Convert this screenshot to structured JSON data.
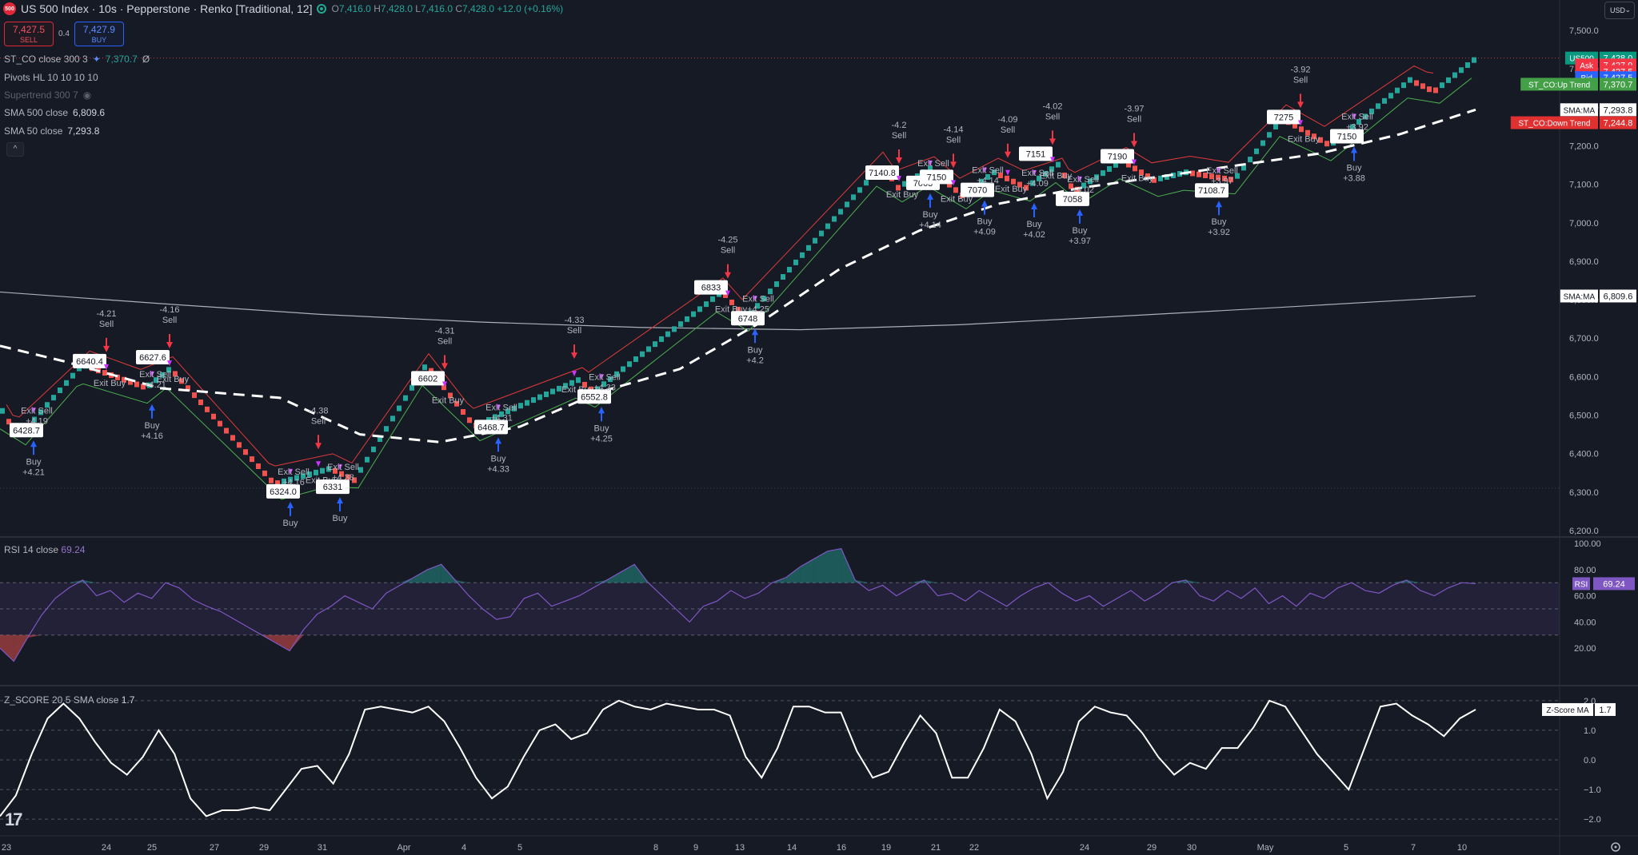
{
  "header": {
    "logo_text": "500",
    "symbol": "US 500 Index · 10s · Pepperstone · Renko [Traditional, 12]",
    "ohlc": {
      "o_label": "O",
      "o": "7,416.0",
      "h_label": "H",
      "h": "7,428.0",
      "l_label": "L",
      "l": "7,416.0",
      "c_label": "C",
      "c": "7,428.0",
      "change": "+12.0 (+0.16%)"
    }
  },
  "trade": {
    "sell_price": "7,427.5",
    "sell_label": "SELL",
    "spread": "0.4",
    "buy_price": "7,427.9",
    "buy_label": "BUY"
  },
  "indicators": [
    {
      "name": "ST_CO close 300 3",
      "value": "7,370.7",
      "extra": "Ø"
    },
    {
      "name": "Pivots HL 10 10 10 10",
      "value": ""
    },
    {
      "name": "Supertrend 300 7",
      "value": ""
    },
    {
      "name": "SMA 500 close",
      "value": "6,809.6"
    },
    {
      "name": "SMA 50 close",
      "value": "7,293.8"
    }
  ],
  "collapse_icon": "chevron-up-icon",
  "currency": {
    "label": "USD",
    "icon": "chevron-down-icon"
  },
  "price_axis": {
    "min": 6200,
    "max": 7500,
    "ticks": [
      "7,500.0",
      "7,400.0",
      "7,300.0",
      "7,200.0",
      "7,100.0",
      "7,000.0",
      "6,900.0",
      "6,800.0",
      "6,700.0",
      "6,600.0",
      "6,500.0",
      "6,400.0",
      "6,300.0",
      "6,200.0"
    ],
    "tick_values": [
      7500,
      7400,
      7300,
      7200,
      7100,
      7000,
      6900,
      6800,
      6700,
      6600,
      6500,
      6400,
      6300,
      6200
    ]
  },
  "price_labels": [
    {
      "tag": "US500",
      "value": "7,428.0",
      "color": "#089981",
      "price": 7428
    },
    {
      "tag": "Ask",
      "value": "7,427.9",
      "color": "#f23645",
      "price": 7410
    },
    {
      "tag": "",
      "value": "7,427.5",
      "color": "#f23645",
      "price": 7393
    },
    {
      "tag": "Bid",
      "value": "7,427.5",
      "color": "#2962ff",
      "price": 7377
    },
    {
      "tag": "ST_CO:Up Trend",
      "value": "7,370.7",
      "color": "#43a047",
      "price": 7360
    },
    {
      "tag": "SMA:MA",
      "value": "7,293.8",
      "color": "#ffffff",
      "price": 7293.8
    },
    {
      "tag": "ST_CO:Down Trend",
      "value": "7,244.8",
      "color": "#e03030",
      "price": 7260
    },
    {
      "tag": "SMA:MA",
      "value": "6,809.6",
      "color": "#ffffff",
      "price": 6809.6
    }
  ],
  "chart_data": {
    "type": "renko",
    "brick_size": 12,
    "sma500": [
      [
        0,
        6820
      ],
      [
        200,
        6790
      ],
      [
        400,
        6762
      ],
      [
        600,
        6742
      ],
      [
        800,
        6728
      ],
      [
        1000,
        6722
      ],
      [
        1200,
        6735
      ],
      [
        1400,
        6757
      ],
      [
        1600,
        6780
      ],
      [
        1845,
        6809.6
      ]
    ],
    "sma50": [
      [
        0,
        6680
      ],
      [
        80,
        6640
      ],
      [
        200,
        6570
      ],
      [
        350,
        6545
      ],
      [
        450,
        6450
      ],
      [
        550,
        6430
      ],
      [
        650,
        6470
      ],
      [
        750,
        6560
      ],
      [
        850,
        6620
      ],
      [
        950,
        6740
      ],
      [
        1050,
        6880
      ],
      [
        1150,
        6980
      ],
      [
        1250,
        7050
      ],
      [
        1350,
        7090
      ],
      [
        1450,
        7120
      ],
      [
        1550,
        7150
      ],
      [
        1650,
        7180
      ],
      [
        1750,
        7230
      ],
      [
        1845,
        7293.8
      ]
    ],
    "renko_path": [
      [
        0,
        6510
      ],
      [
        20,
        6440
      ],
      [
        100,
        6630
      ],
      [
        180,
        6570
      ],
      [
        210,
        6620
      ],
      [
        340,
        6320
      ],
      [
        410,
        6360
      ],
      [
        440,
        6330
      ],
      [
        530,
        6630
      ],
      [
        590,
        6470
      ],
      [
        720,
        6590
      ],
      [
        740,
        6560
      ],
      [
        900,
        6820
      ],
      [
        930,
        6750
      ],
      [
        1100,
        7150
      ],
      [
        1120,
        7090
      ],
      [
        1160,
        7140
      ],
      [
        1200,
        7070
      ],
      [
        1240,
        7130
      ],
      [
        1280,
        7090
      ],
      [
        1320,
        7150
      ],
      [
        1340,
        7080
      ],
      [
        1400,
        7160
      ],
      [
        1440,
        7110
      ],
      [
        1480,
        7130
      ],
      [
        1540,
        7110
      ],
      [
        1600,
        7270
      ],
      [
        1660,
        7200
      ],
      [
        1760,
        7370
      ],
      [
        1790,
        7340
      ],
      [
        1845,
        7430
      ]
    ],
    "signals": [
      {
        "x": 42,
        "side": "buy",
        "pnl": "+4.21",
        "tag": "6428.7",
        "exit": "Exit Sell\n+4.19"
      },
      {
        "x": 133,
        "side": "sell",
        "pnl": "-4.21",
        "tag": "6640.4",
        "exit": "Exit Buy"
      },
      {
        "x": 190,
        "side": "buy",
        "pnl": "+4.16",
        "tag": "",
        "exit": "Exit Sell\n+4.21"
      },
      {
        "x": 212,
        "side": "sell",
        "pnl": "-4.16",
        "tag": "6627.6",
        "exit": "Exit Buy"
      },
      {
        "x": 363,
        "side": "buy",
        "pnl": "",
        "tag": "6324.0",
        "exit": "Exit Sell\n+4.16"
      },
      {
        "x": 398,
        "side": "sell",
        "pnl": "-4.38",
        "tag": "",
        "exit": "Exit Buy"
      },
      {
        "x": 425,
        "side": "buy",
        "pnl": "",
        "tag": "6331",
        "exit": "Exit Sell\n+4.38"
      },
      {
        "x": 556,
        "side": "sell",
        "pnl": "-4.31",
        "tag": "6602",
        "exit": "Exit Buy"
      },
      {
        "x": 623,
        "side": "buy",
        "pnl": "+4.33",
        "tag": "6468.7",
        "exit": "Exit Sell\n+4.31"
      },
      {
        "x": 718,
        "side": "sell",
        "pnl": "-4.33",
        "tag": "",
        "exit": "Exit Buy"
      },
      {
        "x": 752,
        "side": "buy",
        "pnl": "+4.25",
        "tag": "6552.8",
        "exit": "Exit Sell\n+4.33"
      },
      {
        "x": 910,
        "side": "sell",
        "pnl": "-4.25",
        "tag": "6833",
        "exit": "Exit Buy"
      },
      {
        "x": 944,
        "side": "buy",
        "pnl": "+4.2",
        "tag": "6748",
        "exit": "Exit Sell\n+4.25"
      },
      {
        "x": 1124,
        "side": "sell",
        "pnl": "-4.2",
        "tag": "7140.8",
        "exit": "Exit Buy"
      },
      {
        "x": 1163,
        "side": "buy",
        "pnl": "+4.14",
        "tag": "7063",
        "exit": "Exit Sell\n+4.2"
      },
      {
        "x": 1192,
        "side": "sell",
        "pnl": "-4.14",
        "tag": "7150",
        "exit": "Exit Buy"
      },
      {
        "x": 1231,
        "side": "buy",
        "pnl": "+4.09",
        "tag": "7070",
        "exit": "Exit Sell\n+4.14"
      },
      {
        "x": 1260,
        "side": "sell",
        "pnl": "-4.09",
        "tag": "",
        "exit": "Exit Buy"
      },
      {
        "x": 1293,
        "side": "buy",
        "pnl": "+4.02",
        "tag": "",
        "exit": "Exit Sell\n+4.09"
      },
      {
        "x": 1316,
        "side": "sell",
        "pnl": "-4.02",
        "tag": "7151",
        "exit": "Exit Buy"
      },
      {
        "x": 1350,
        "side": "buy",
        "pnl": "+3.97",
        "tag": "7058",
        "exit": "Exit Sell\n+4.02"
      },
      {
        "x": 1418,
        "side": "sell",
        "pnl": "-3.97",
        "tag": "7190",
        "exit": "Exit Buy"
      },
      {
        "x": 1524,
        "side": "buy",
        "pnl": "+3.92",
        "tag": "7108.7",
        "exit": "Exit Sell\n+3.97"
      },
      {
        "x": 1626,
        "side": "sell",
        "pnl": "-3.92",
        "tag": "7275",
        "exit": "Exit Buy"
      },
      {
        "x": 1693,
        "side": "buy",
        "pnl": "+3.88",
        "tag": "7150",
        "exit": "Exit Sell\n+3.92"
      }
    ],
    "x_ticks": [
      "23",
      "24",
      "25",
      "27",
      "29",
      "31",
      "Apr",
      "4",
      "5",
      "8",
      "9",
      "13",
      "14",
      "16",
      "19",
      "21",
      "22",
      "24",
      "29",
      "30",
      "May",
      "5",
      "7",
      "10"
    ],
    "x_tick_pos": [
      8,
      133,
      190,
      268,
      330,
      403,
      505,
      580,
      650,
      820,
      870,
      925,
      990,
      1052,
      1108,
      1170,
      1218,
      1356,
      1440,
      1490,
      1582,
      1683,
      1767,
      1828
    ]
  },
  "rsi": {
    "label": "RSI 14 close",
    "value": "69.24",
    "tag": "RSI",
    "levels": [
      70,
      50,
      30
    ],
    "axis_ticks": [
      "100.00",
      "80.00",
      "60.00",
      "40.00",
      "20.00"
    ],
    "axis_values": [
      100,
      80,
      60,
      40,
      20
    ],
    "series": [
      20,
      10,
      28,
      45,
      58,
      66,
      72,
      60,
      64,
      55,
      62,
      58,
      70,
      66,
      57,
      52,
      48,
      42,
      36,
      30,
      24,
      18,
      34,
      46,
      52,
      60,
      55,
      50,
      62,
      68,
      74,
      80,
      84,
      72,
      60,
      50,
      42,
      44,
      58,
      62,
      52,
      56,
      60,
      66,
      72,
      78,
      84,
      70,
      60,
      50,
      40,
      52,
      56,
      64,
      58,
      62,
      70,
      74,
      82,
      88,
      94,
      96,
      72,
      64,
      68,
      60,
      66,
      72,
      60,
      62,
      56,
      64,
      58,
      52,
      60,
      66,
      70,
      62,
      56,
      60,
      52,
      58,
      64,
      56,
      62,
      70,
      72,
      60,
      56,
      64,
      58,
      66,
      54,
      60,
      52,
      62,
      58,
      66,
      70,
      64,
      62,
      68,
      72,
      64,
      60,
      66,
      70,
      69.24
    ]
  },
  "zscore": {
    "label": "Z_SCORE 20 5 SMA close",
    "value": "1.7",
    "tag": "Z-Score MA",
    "axis_ticks": [
      "2.0",
      "1.0",
      "0.0",
      "−1.0",
      "−2.0"
    ],
    "axis_values": [
      2,
      1,
      0,
      -1,
      -2
    ],
    "series": [
      -1.9,
      -1.2,
      0.2,
      1.4,
      1.9,
      1.4,
      0.6,
      -0.1,
      -0.5,
      0.1,
      1.0,
      0.2,
      -1.3,
      -1.9,
      -1.7,
      -1.7,
      -1.6,
      -1.7,
      -1.0,
      -0.3,
      -0.2,
      -0.8,
      0.2,
      1.7,
      1.8,
      1.7,
      1.6,
      1.8,
      1.3,
      0.4,
      -0.6,
      -1.3,
      -0.9,
      0.1,
      1.0,
      1.2,
      0.7,
      0.9,
      1.7,
      2.0,
      1.8,
      1.7,
      1.9,
      1.8,
      1.7,
      1.7,
      1.5,
      0.1,
      -0.6,
      0.4,
      1.8,
      1.8,
      1.6,
      1.6,
      0.3,
      -0.6,
      -0.4,
      0.6,
      1.5,
      0.9,
      -0.6,
      -0.6,
      0.4,
      1.7,
      1.3,
      0.2,
      -1.3,
      -0.4,
      1.3,
      1.8,
      1.6,
      1.5,
      0.9,
      0.1,
      -0.5,
      -0.1,
      -0.3,
      0.4,
      0.4,
      1.1,
      2.0,
      1.8,
      1.0,
      0.2,
      -0.4,
      -1.0,
      0.4,
      1.8,
      1.9,
      1.5,
      1.2,
      0.8,
      1.4,
      1.7
    ]
  },
  "tv_logo": "17"
}
